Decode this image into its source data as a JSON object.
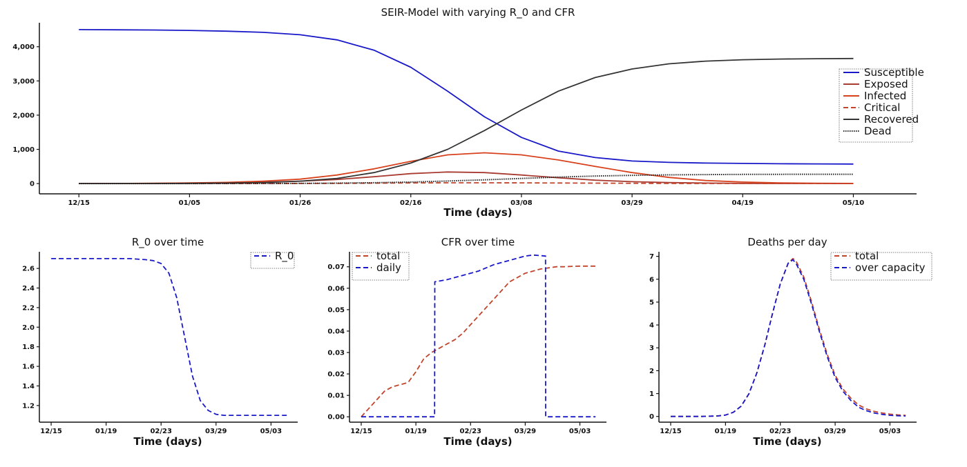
{
  "chart_data": [
    {
      "id": "seir",
      "type": "line",
      "title": "SEIR-Model with varying R_0 and CFR",
      "xlabel": "Time (days)",
      "ylabel": "",
      "x_ticks": [
        "12/15",
        "01/05",
        "01/26",
        "02/16",
        "03/08",
        "03/29",
        "04/19",
        "05/10"
      ],
      "x_tick_days": [
        0,
        21,
        42,
        63,
        84,
        105,
        126,
        147
      ],
      "xlim": [
        -7.5,
        159
      ],
      "y_ticks": [
        "0",
        "1,000",
        "2,000",
        "3,000",
        "4,000"
      ],
      "y_tick_values": [
        0,
        1000,
        2000,
        3000,
        4000
      ],
      "ylim": [
        -300,
        4700
      ],
      "legend_position": "right",
      "x": [
        0,
        7,
        14,
        21,
        28,
        35,
        42,
        49,
        56,
        63,
        70,
        77,
        84,
        91,
        98,
        105,
        112,
        119,
        126,
        133,
        140,
        147
      ],
      "series": [
        {
          "name": "Susceptible",
          "color": "#1818c8",
          "dash": "solid",
          "values": [
            4500,
            4495,
            4488,
            4476,
            4455,
            4420,
            4350,
            4200,
            3900,
            3400,
            2700,
            1950,
            1350,
            950,
            760,
            660,
            620,
            600,
            590,
            580,
            575,
            570
          ]
        },
        {
          "name": "Exposed",
          "color": "#a83a30",
          "dash": "solid",
          "values": [
            0,
            2,
            5,
            10,
            20,
            40,
            70,
            120,
            200,
            290,
            340,
            320,
            250,
            170,
            100,
            55,
            28,
            14,
            7,
            3,
            2,
            1
          ]
        },
        {
          "name": "Infected",
          "color": "#d8401c",
          "dash": "solid",
          "values": [
            0,
            3,
            8,
            18,
            35,
            70,
            130,
            250,
            430,
            650,
            840,
            900,
            840,
            690,
            500,
            320,
            180,
            90,
            45,
            20,
            10,
            5
          ]
        },
        {
          "name": "Critical",
          "color": "#c0442c",
          "dash": "dashed",
          "values": [
            0,
            0,
            0,
            1,
            1,
            2,
            4,
            7,
            12,
            18,
            22,
            23,
            21,
            17,
            12,
            8,
            5,
            3,
            2,
            1,
            0,
            0
          ]
        },
        {
          "name": "Recovered",
          "color": "#333333",
          "dash": "solid",
          "values": [
            0,
            1,
            3,
            7,
            15,
            30,
            70,
            150,
            320,
            600,
            1000,
            1550,
            2150,
            2700,
            3100,
            3350,
            3500,
            3580,
            3620,
            3640,
            3650,
            3655
          ]
        },
        {
          "name": "Dead",
          "color": "#222222",
          "dash": "dotted",
          "values": [
            0,
            0,
            0,
            1,
            2,
            3,
            6,
            12,
            25,
            45,
            75,
            110,
            150,
            190,
            220,
            240,
            255,
            262,
            268,
            270,
            272,
            273
          ]
        }
      ]
    },
    {
      "id": "r0",
      "type": "line",
      "title": "R_0 over time",
      "xlabel": "Time (days)",
      "ylabel": "",
      "x_ticks": [
        "12/15",
        "01/19",
        "02/23",
        "03/29",
        "05/03"
      ],
      "x_tick_days": [
        0,
        35,
        70,
        105,
        140
      ],
      "xlim": [
        -7.5,
        157
      ],
      "y_ticks": [
        "1.2",
        "1.4",
        "1.6",
        "1.8",
        "2.0",
        "2.2",
        "2.4",
        "2.6"
      ],
      "y_tick_values": [
        1.2,
        1.4,
        1.6,
        1.8,
        2.0,
        2.2,
        2.4,
        2.6
      ],
      "ylim": [
        1.03,
        2.77
      ],
      "legend_position": "top-right",
      "x": [
        0,
        10,
        20,
        30,
        40,
        50,
        60,
        65,
        70,
        75,
        80,
        85,
        90,
        95,
        100,
        105,
        110,
        120,
        130,
        140,
        150
      ],
      "series": [
        {
          "name": "R_0",
          "color": "#1818c8",
          "dash": "dashed",
          "values": [
            2.7,
            2.7,
            2.7,
            2.7,
            2.7,
            2.7,
            2.69,
            2.68,
            2.65,
            2.55,
            2.3,
            1.9,
            1.5,
            1.25,
            1.15,
            1.11,
            1.1,
            1.1,
            1.1,
            1.1,
            1.1
          ]
        }
      ]
    },
    {
      "id": "cfr",
      "type": "line",
      "title": "CFR over time",
      "xlabel": "Time (days)",
      "ylabel": "",
      "x_ticks": [
        "12/15",
        "01/19",
        "02/23",
        "03/29",
        "05/03"
      ],
      "x_tick_days": [
        0,
        35,
        70,
        105,
        140
      ],
      "xlim": [
        -7.5,
        157
      ],
      "y_ticks": [
        "0.00",
        "0.01",
        "0.02",
        "0.03",
        "0.04",
        "0.05",
        "0.06",
        "0.07"
      ],
      "y_tick_values": [
        0,
        0.01,
        0.02,
        0.03,
        0.04,
        0.05,
        0.06,
        0.07
      ],
      "ylim": [
        -0.0025,
        0.077
      ],
      "legend_position": "top-left",
      "series": [
        {
          "name": "total",
          "color": "#c0442c",
          "dash": "dashed",
          "x": [
            0,
            5,
            10,
            15,
            20,
            25,
            30,
            35,
            40,
            45,
            50,
            55,
            60,
            65,
            70,
            75,
            80,
            85,
            90,
            95,
            100,
            105,
            110,
            115,
            120,
            125,
            130,
            135,
            140,
            145,
            150
          ],
          "values": [
            0,
            0.004,
            0.008,
            0.012,
            0.014,
            0.015,
            0.016,
            0.021,
            0.027,
            0.03,
            0.032,
            0.034,
            0.036,
            0.039,
            0.043,
            0.047,
            0.051,
            0.055,
            0.059,
            0.063,
            0.065,
            0.067,
            0.068,
            0.069,
            0.0695,
            0.07,
            0.07,
            0.0702,
            0.0703,
            0.0703,
            0.0703
          ]
        },
        {
          "name": "daily",
          "color": "#1818c8",
          "dash": "dashed",
          "x": [
            0,
            10,
            20,
            30,
            40,
            47,
            47.1,
            55,
            65,
            75,
            85,
            95,
            105,
            110,
            115,
            118,
            118.1,
            125,
            135,
            145,
            150
          ],
          "values": [
            0,
            0,
            0,
            0,
            0,
            0,
            0.063,
            0.064,
            0.066,
            0.068,
            0.071,
            0.073,
            0.075,
            0.0755,
            0.0752,
            0.075,
            0,
            0,
            0,
            0,
            0
          ]
        }
      ]
    },
    {
      "id": "deaths",
      "type": "line",
      "title": "Deaths per day",
      "xlabel": "Time (days)",
      "ylabel": "",
      "x_ticks": [
        "12/15",
        "01/19",
        "02/23",
        "03/29",
        "05/03"
      ],
      "x_tick_days": [
        0,
        35,
        70,
        105,
        140
      ],
      "xlim": [
        -7.5,
        157
      ],
      "y_ticks": [
        "0",
        "1",
        "2",
        "3",
        "4",
        "5",
        "6",
        "7"
      ],
      "y_tick_values": [
        0,
        1,
        2,
        3,
        4,
        5,
        6,
        7
      ],
      "ylim": [
        -0.25,
        7.2
      ],
      "legend_position": "top-right",
      "x": [
        0,
        10,
        20,
        30,
        35,
        40,
        45,
        50,
        55,
        60,
        65,
        70,
        75,
        78,
        80,
        85,
        90,
        95,
        100,
        105,
        110,
        115,
        120,
        125,
        130,
        135,
        140,
        145,
        150
      ],
      "series": [
        {
          "name": "total",
          "color": "#c0442c",
          "dash": "dashed",
          "values": [
            0,
            0,
            0,
            0.02,
            0.06,
            0.18,
            0.45,
            1.0,
            1.9,
            3.1,
            4.5,
            5.8,
            6.7,
            6.9,
            6.8,
            6.1,
            5.0,
            3.8,
            2.7,
            1.8,
            1.2,
            0.8,
            0.5,
            0.33,
            0.22,
            0.15,
            0.1,
            0.07,
            0.05
          ]
        },
        {
          "name": "over capacity",
          "color": "#1818c8",
          "dash": "dashed",
          "values": [
            0,
            0,
            0,
            0.02,
            0.06,
            0.18,
            0.45,
            1.0,
            1.9,
            3.1,
            4.5,
            5.8,
            6.7,
            6.85,
            6.7,
            6.0,
            4.9,
            3.7,
            2.6,
            1.7,
            1.1,
            0.7,
            0.4,
            0.25,
            0.15,
            0.09,
            0.05,
            0.03,
            0.02
          ]
        }
      ]
    }
  ]
}
